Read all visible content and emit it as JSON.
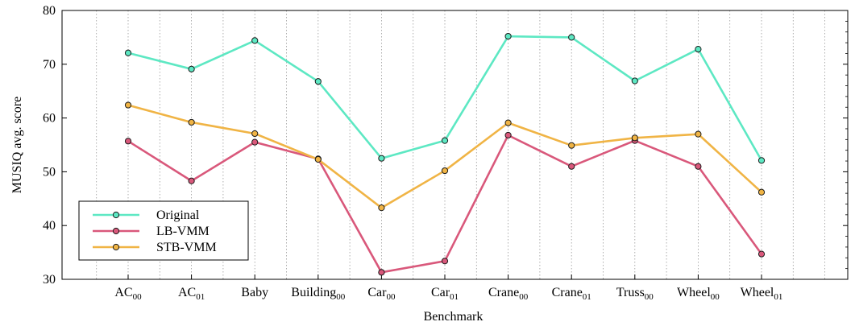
{
  "chart_data": {
    "type": "line",
    "title": "",
    "xlabel": "Benchmark",
    "ylabel": "MUSIQ avg. score",
    "ylim": [
      30,
      80
    ],
    "yticks": [
      30,
      40,
      50,
      60,
      70,
      80
    ],
    "grid": "vertical dotted",
    "legend_position": "bottom-left",
    "categories": [
      {
        "base": "AC",
        "sub": "00"
      },
      {
        "base": "AC",
        "sub": "01"
      },
      {
        "base": "Baby",
        "sub": ""
      },
      {
        "base": "Building",
        "sub": "00"
      },
      {
        "base": "Car",
        "sub": "00"
      },
      {
        "base": "Car",
        "sub": "01"
      },
      {
        "base": "Crane",
        "sub": "00"
      },
      {
        "base": "Crane",
        "sub": "01"
      },
      {
        "base": "Truss",
        "sub": "00"
      },
      {
        "base": "Wheel",
        "sub": "00"
      },
      {
        "base": "Wheel",
        "sub": "01"
      }
    ],
    "series": [
      {
        "name": "Original",
        "color": "#5de8c3",
        "values": [
          72.1,
          69.1,
          74.4,
          66.8,
          52.5,
          55.8,
          75.2,
          75.0,
          66.9,
          72.8,
          52.1
        ]
      },
      {
        "name": "LB-VMM",
        "color": "#d9587b",
        "values": [
          55.7,
          48.3,
          55.5,
          52.4,
          31.3,
          33.4,
          56.8,
          51.0,
          55.8,
          51.0,
          34.7
        ]
      },
      {
        "name": "STB-VMM",
        "color": "#f0b445",
        "values": [
          62.4,
          59.2,
          57.1,
          52.3,
          43.3,
          50.2,
          59.1,
          54.9,
          56.3,
          57.0,
          46.2
        ]
      }
    ]
  }
}
